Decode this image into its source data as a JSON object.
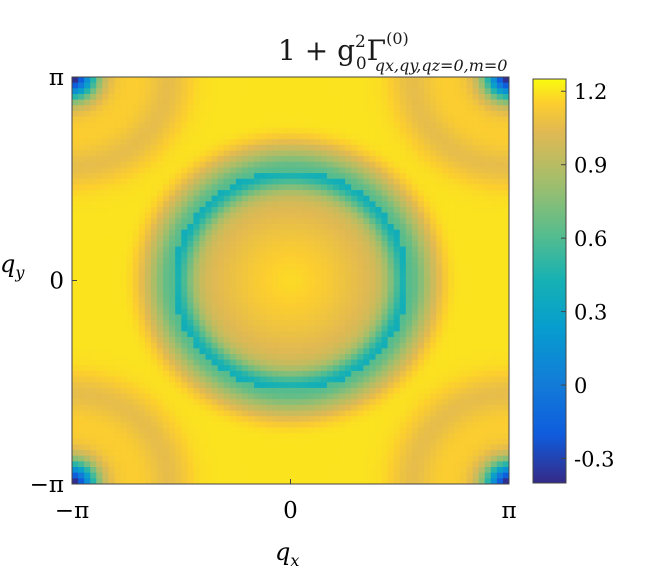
{
  "chart_data": {
    "type": "heatmap",
    "title": {
      "base": "1 + g",
      "sub_g": "0",
      "sup_g": "2",
      "symbol": "Γ",
      "sup": "(0)",
      "sub": "qx,qy,qz=0,m=0"
    },
    "xlabel": {
      "symbol": "q",
      "sub": "x"
    },
    "ylabel": {
      "symbol": "q",
      "sub": "y"
    },
    "x_range": [
      -3.14159,
      3.14159
    ],
    "y_range": [
      -3.14159,
      3.14159
    ],
    "x_ticks": [
      {
        "value": -3.14159,
        "label": "−π"
      },
      {
        "value": 0,
        "label": "0"
      },
      {
        "value": 3.14159,
        "label": "π"
      }
    ],
    "y_ticks": [
      {
        "value": 3.14159,
        "label": "π"
      },
      {
        "value": 0,
        "label": "0"
      },
      {
        "value": -3.14159,
        "label": "−π"
      }
    ],
    "colorbar": {
      "colormap": "parula",
      "limits": [
        -0.4,
        1.25
      ],
      "ticks": [
        {
          "value": 1.2,
          "label": "1.2"
        },
        {
          "value": 0.9,
          "label": "0.9"
        },
        {
          "value": 0.6,
          "label": "0.6"
        },
        {
          "value": 0.3,
          "label": "0.3"
        },
        {
          "value": 0.0,
          "label": "0"
        },
        {
          "value": -0.3,
          "label": "-0.3"
        }
      ]
    },
    "field_features": {
      "background_value": 1.2,
      "central_ring_radius_q": 1.7,
      "central_ring_min_value": 0.62,
      "center_value": 0.95,
      "corner_min_value": -0.35,
      "corner_ring_radius_q": 1.4,
      "edge_shoulder_value": 1.05
    },
    "grid": false,
    "legend": "colorbar-right"
  }
}
